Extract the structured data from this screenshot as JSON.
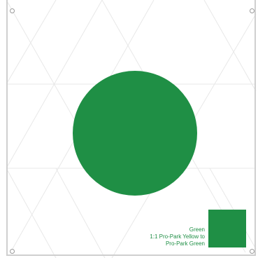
{
  "colors": {
    "circle": "#1f8f45",
    "swatch": "#1f8f45",
    "label_text": "#1f8f45",
    "frame": "#cfcfcf",
    "grid_lines": "#e8e8e8",
    "holes": "#9a9a9a"
  },
  "swatch_label": {
    "line1": "Green",
    "line2": "1:1 Pro-Park Yellow to",
    "line3": "Pro-Park Green"
  }
}
